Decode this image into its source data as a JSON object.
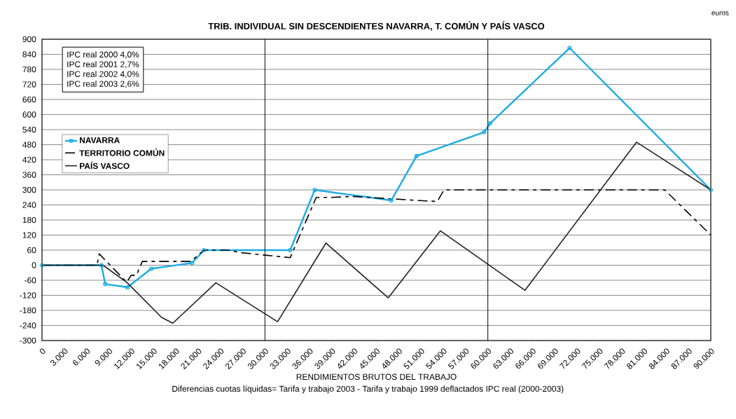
{
  "chart_data": {
    "type": "line",
    "title": "TRIB. INDIVIDUAL SIN DESCENDIENTES NAVARRA, T. COMÚN Y PAÍS VASCO",
    "xlabel": "RENDIMIENTOS BRUTOS DEL TRABAJO",
    "annotations": [
      "euros",
      "IPC real 2000 4,0%",
      "IPC real 2001 2,7%",
      "IPC real 2002 4,0%",
      "IPC real 2003 2,6%",
      "Diferencias cuotas líquidas= Tarifa y trabajo 2003 - Tarifa y trabajo 1999 deflactados IPC real (2000-2003)"
    ],
    "xlim": [
      0,
      90000
    ],
    "xticks": [
      0,
      {
        "value": 3000,
        "label": "3.000"
      },
      {
        "value": 6000,
        "label": "6.000"
      },
      {
        "value": 9000,
        "label": "9.000"
      },
      {
        "value": 12000,
        "label": "12.000"
      },
      {
        "value": 15000,
        "label": "15.000"
      },
      {
        "value": 18000,
        "label": "18.000"
      },
      {
        "value": 21000,
        "label": "21.000"
      },
      {
        "value": 24000,
        "label": "24.000"
      },
      {
        "value": 27000,
        "label": "27.000"
      },
      {
        "value": 30000,
        "label": "30.000"
      },
      {
        "value": 33000,
        "label": "33.000"
      },
      {
        "value": 36000,
        "label": "36.000"
      },
      {
        "value": 39000,
        "label": "39.000"
      },
      {
        "value": 42000,
        "label": "42.000"
      },
      {
        "value": 45000,
        "label": "45.000"
      },
      {
        "value": 48000,
        "label": "48.000"
      },
      {
        "value": 51000,
        "label": "51.000"
      },
      {
        "value": 54000,
        "label": "54.000"
      },
      {
        "value": 57000,
        "label": "57.000"
      },
      {
        "value": 60000,
        "label": "60.000"
      },
      {
        "value": 63000,
        "label": "63.000"
      },
      {
        "value": 66000,
        "label": "66.000"
      },
      {
        "value": 69000,
        "label": "69.000"
      },
      {
        "value": 72000,
        "label": "72.000"
      },
      {
        "value": 75000,
        "label": "75.000"
      },
      {
        "value": 78000,
        "label": "78.000"
      },
      {
        "value": 81000,
        "label": "81.000"
      },
      {
        "value": 84000,
        "label": "84.000"
      },
      {
        "value": 87000,
        "label": "87.000"
      },
      {
        "value": 90000,
        "label": "90.000"
      }
    ],
    "ylim": [
      -300,
      900
    ],
    "yticks": [
      -300,
      -240,
      -180,
      -120,
      -60,
      0,
      60,
      120,
      180,
      240,
      300,
      360,
      420,
      480,
      540,
      600,
      660,
      720,
      780,
      840,
      900
    ],
    "grid": "y",
    "legend": "left",
    "ref_lines": [
      {
        "axis": "x",
        "value": 30000,
        "color": "#000000"
      },
      {
        "axis": "x",
        "value": 60000,
        "color": "#000000"
      }
    ],
    "series": [
      {
        "name": "NAVARRA",
        "color": "#1aace4",
        "marker": "circle",
        "line_style": "solid",
        "x": [
          0,
          8000,
          8500,
          11500,
          14700,
          20200,
          21800,
          33400,
          36700,
          47000,
          50400,
          59500,
          60300,
          71000,
          90000
        ],
        "values": [
          0,
          0,
          -75,
          -88,
          -14,
          9,
          60,
          60,
          300,
          258,
          435,
          530,
          565,
          865,
          300
        ]
      },
      {
        "name": "TERRITORIO COMÚN",
        "color": "#000000",
        "marker": "none",
        "line_style": "dashed",
        "x": [
          0,
          7400,
          7700,
          11400,
          12000,
          12700,
          13500,
          20000,
          21800,
          25000,
          26800,
          30000,
          33400,
          36900,
          39000,
          41800,
          51600,
          53200,
          54100,
          83800,
          90000
        ],
        "values": [
          0,
          0,
          45,
          -68,
          -40,
          -40,
          15,
          15,
          60,
          60,
          50,
          40,
          30,
          270,
          270,
          274,
          256,
          254,
          300,
          300,
          120
        ]
      },
      {
        "name": "PAÍS VASCO",
        "color": "#231f20",
        "marker": "none",
        "line_style": "solid",
        "x": [
          0,
          8200,
          11400,
          16100,
          17600,
          23400,
          31700,
          38200,
          46600,
          53600,
          65000,
          80000,
          90000
        ],
        "values": [
          0,
          0,
          -68,
          -208,
          -231,
          -70,
          -225,
          88,
          -130,
          137,
          -100,
          490,
          300
        ]
      }
    ]
  }
}
